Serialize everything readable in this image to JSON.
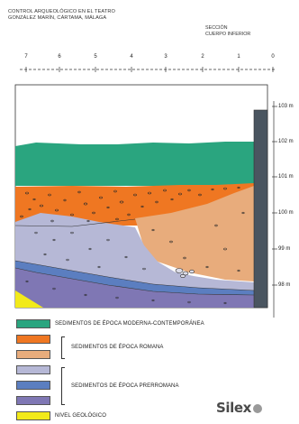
{
  "title": {
    "line1": "CONTROL ARQUEOLÓGICO EN EL TEATRO",
    "line2": "GONZÁLEZ MARÍN, CÁRTAMA, MÁLAGA"
  },
  "section_label": {
    "line1": "SECCIÓN",
    "line2": "CUERPO INFERIOR"
  },
  "horizontal_scale": [
    "7",
    "6",
    "5",
    "4",
    "3",
    "2",
    "1",
    "0"
  ],
  "elevation_scale": [
    "103 m",
    "102 m",
    "101 m",
    "100 m",
    "99 m",
    "98 m"
  ],
  "layer_colors": {
    "modern": "#2aa57f",
    "roman_upper": "#ef7722",
    "roman_lower": "#e8ac7c",
    "prehistoric_light": "#b6b8d6",
    "prehistoric_mid": "#5b7ec0",
    "prehistoric_dark": "#7f77b4",
    "geological": "#f2ea1a",
    "wall": "#4a5560"
  },
  "legend": {
    "modern_label": "SEDIMENTOS  DE ÉPOCA  MODERNA-CONTEMPORÁNEA",
    "roman_label": "SEDIMENTOS DE ÉPOCA ROMANA",
    "prehistoric_label": "SEDIMENTOS DE ÉPOCA PRERROMANA",
    "geological_label": "NIVEL GEOLÓGICO"
  },
  "logo": {
    "text": "Silex"
  }
}
